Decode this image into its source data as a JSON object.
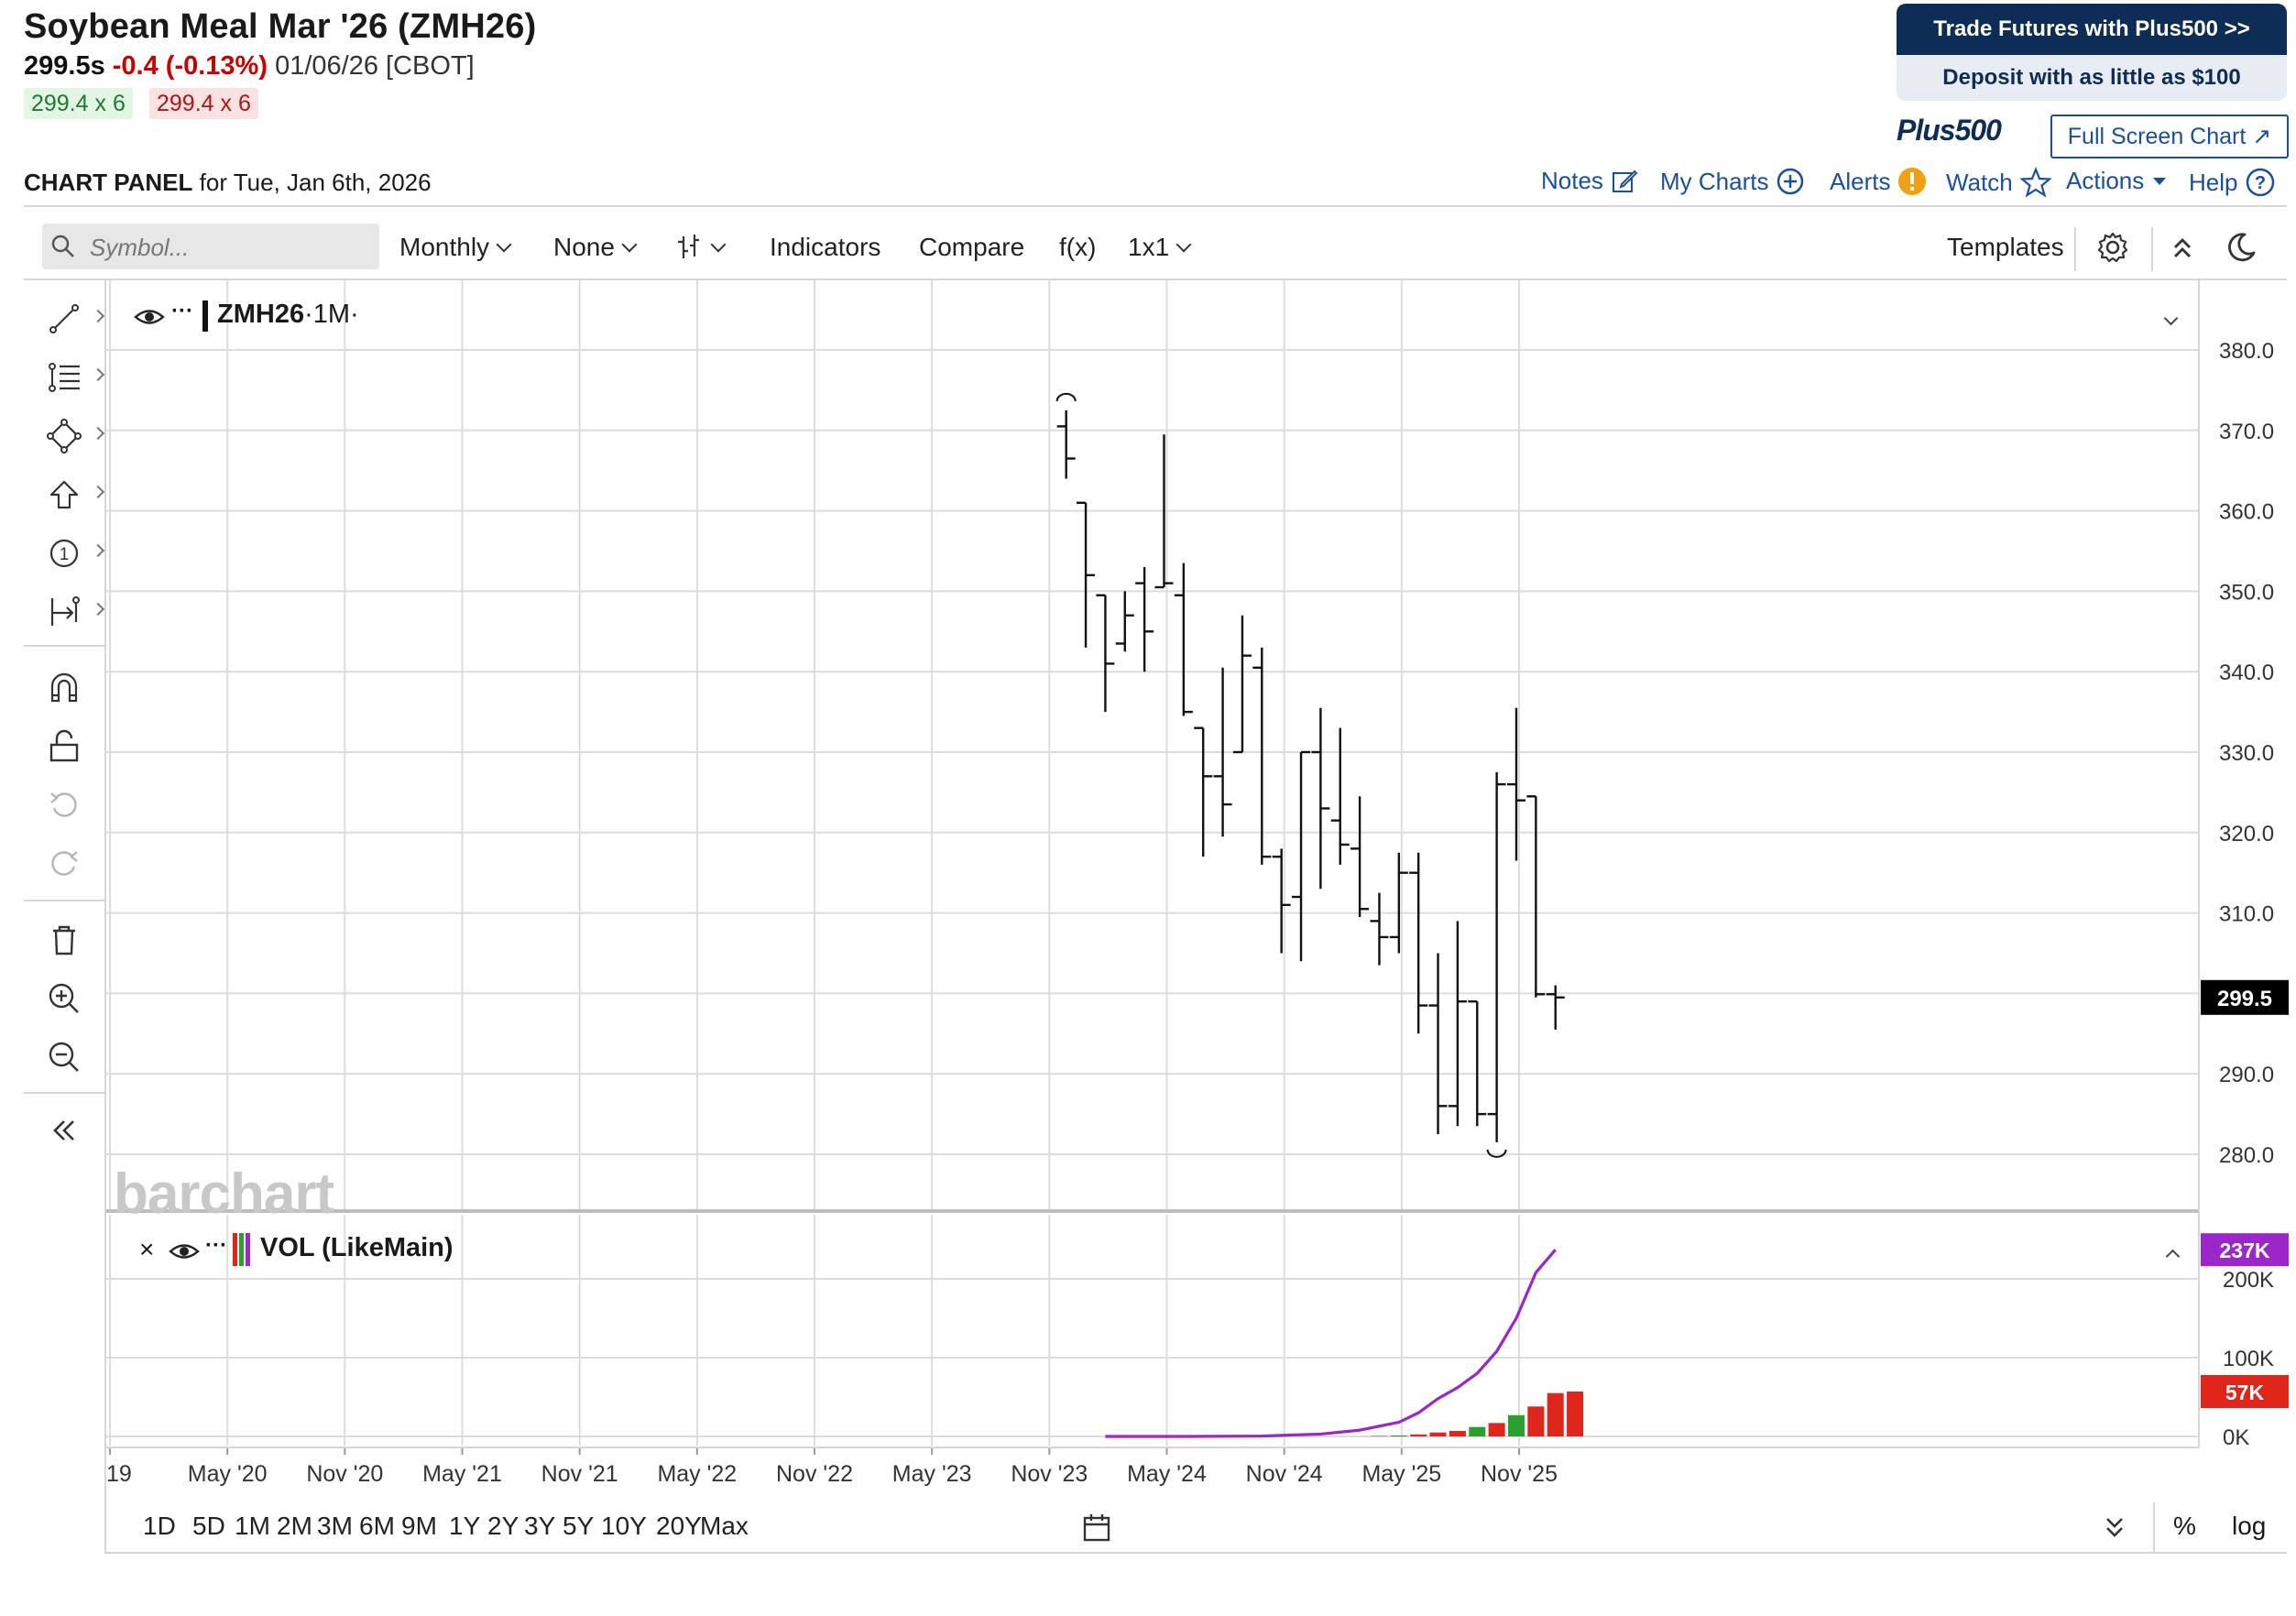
{
  "header": {
    "title": "Soybean Meal Mar '26 (ZMH26)",
    "price": "299.5s",
    "change": "-0.4 (-0.13%)",
    "meta": "01/06/26 [CBOT]",
    "bid": "299.4 x 6",
    "ask": "299.4 x 6"
  },
  "ad": {
    "line1": "Trade Futures with Plus500 >>",
    "line2": "Deposit with as little as $100",
    "brand": "Plus500",
    "fullscreen": "Full Screen Chart ↗"
  },
  "panel": {
    "label": "CHART PANEL",
    "date": "for Tue, Jan 6th, 2026",
    "links": {
      "notes": "Notes",
      "mycharts": "My Charts",
      "alerts": "Alerts",
      "watch": "Watch",
      "actions": "Actions",
      "help": "Help"
    }
  },
  "toolbar": {
    "search_placeholder": "Symbol...",
    "period": "Monthly",
    "overlay": "None",
    "indicators": "Indicators",
    "compare": "Compare",
    "fx": "f(x)",
    "layout": "1x1",
    "templates": "Templates"
  },
  "legend": {
    "main": "ZMH26",
    "main_interval": "·1M·",
    "vol": "VOL (LikeMain)"
  },
  "watermark": "barchart",
  "bottom": {
    "ranges": [
      "1D",
      "5D",
      "1M",
      "2M",
      "3M",
      "6M",
      "9M",
      "1Y",
      "2Y",
      "3Y",
      "5Y",
      "10Y",
      "20Y",
      "Max"
    ],
    "pct": "%",
    "log": "log"
  },
  "colors": {
    "up": "#2ca02c",
    "down": "#e0261b",
    "vol_line": "#9b27c9",
    "price_tag": "#000000",
    "accent": "#1a4f9c"
  },
  "chart_data": [
    {
      "type": "ohlc",
      "title": "ZMH26",
      "interval": "1M",
      "x_tick_labels": [
        "19",
        "May '20",
        "Nov '20",
        "May '21",
        "Nov '21",
        "May '22",
        "Nov '22",
        "May '23",
        "Nov '23",
        "May '24",
        "Nov '24",
        "May '25",
        "Nov '25"
      ],
      "y_ticks": [
        280.0,
        290.0,
        300.0,
        310.0,
        320.0,
        330.0,
        340.0,
        350.0,
        360.0,
        370.0,
        380.0
      ],
      "ylim": [
        274,
        388
      ],
      "last_price": 299.5,
      "last_price_label": "299.5",
      "grid": true,
      "bars": [
        {
          "date": "2023-12",
          "open": 370.5,
          "high": 372.5,
          "low": 364.0,
          "close": 366.5
        },
        {
          "date": "2024-01",
          "open": 361.0,
          "high": 361.0,
          "low": 343.0,
          "close": 352.0
        },
        {
          "date": "2024-02",
          "open": 349.5,
          "high": 349.5,
          "low": 335.0,
          "close": 341.0
        },
        {
          "date": "2024-03",
          "open": 343.5,
          "high": 350.0,
          "low": 342.5,
          "close": 347.0
        },
        {
          "date": "2024-04",
          "open": 351.0,
          "high": 353.0,
          "low": 340.0,
          "close": 345.0
        },
        {
          "date": "2024-05",
          "open": 350.5,
          "high": 369.5,
          "low": 350.5,
          "close": 351.0
        },
        {
          "date": "2024-06",
          "open": 349.5,
          "high": 353.5,
          "low": 334.5,
          "close": 335.0
        },
        {
          "date": "2024-07",
          "open": 333.0,
          "high": 333.0,
          "low": 317.0,
          "close": 327.0
        },
        {
          "date": "2024-08",
          "open": 327.0,
          "high": 340.5,
          "low": 319.5,
          "close": 323.5
        },
        {
          "date": "2024-09",
          "open": 330.0,
          "high": 347.0,
          "low": 330.0,
          "close": 342.0
        },
        {
          "date": "2024-10",
          "open": 340.5,
          "high": 343.0,
          "low": 316.0,
          "close": 317.0
        },
        {
          "date": "2024-11",
          "open": 317.0,
          "high": 318.0,
          "low": 305.0,
          "close": 311.0
        },
        {
          "date": "2024-12",
          "open": 312.0,
          "high": 330.0,
          "low": 304.0,
          "close": 330.0
        },
        {
          "date": "2025-01",
          "open": 330.0,
          "high": 335.5,
          "low": 313.0,
          "close": 323.0
        },
        {
          "date": "2025-02",
          "open": 321.5,
          "high": 333.0,
          "low": 316.0,
          "close": 318.5
        },
        {
          "date": "2025-03",
          "open": 318.0,
          "high": 324.5,
          "low": 309.5,
          "close": 310.5
        },
        {
          "date": "2025-04",
          "open": 309.0,
          "high": 312.5,
          "low": 303.5,
          "close": 307.0
        },
        {
          "date": "2025-05",
          "open": 307.0,
          "high": 317.5,
          "low": 305.0,
          "close": 315.0
        },
        {
          "date": "2025-06",
          "open": 315.0,
          "high": 317.5,
          "low": 295.0,
          "close": 298.5
        },
        {
          "date": "2025-07",
          "open": 298.5,
          "high": 305.0,
          "low": 282.5,
          "close": 286.0
        },
        {
          "date": "2025-08",
          "open": 286.0,
          "high": 309.0,
          "low": 283.5,
          "close": 299.0
        },
        {
          "date": "2025-09",
          "open": 299.0,
          "high": 299.0,
          "low": 283.5,
          "close": 285.0
        },
        {
          "date": "2025-10",
          "open": 285.0,
          "high": 327.5,
          "low": 281.5,
          "close": 326.0
        },
        {
          "date": "2025-11",
          "open": 326.0,
          "high": 335.5,
          "low": 316.5,
          "close": 324.0
        },
        {
          "date": "2025-12",
          "open": 324.5,
          "high": 324.5,
          "low": 299.5,
          "close": 299.9
        },
        {
          "date": "2026-01",
          "open": 299.9,
          "high": 301.0,
          "low": 295.5,
          "close": 299.5
        }
      ],
      "annotations": [
        "high-marker above Nov '23 bar",
        "low-marker below Oct '25 bar"
      ]
    },
    {
      "type": "bar",
      "title": "VOL (LikeMain)",
      "y_tick_labels": [
        "0K",
        "100K",
        "200K"
      ],
      "ylim": [
        0,
        260000
      ],
      "last_volume_label": "57K",
      "line_label": "237K",
      "bars": [
        {
          "date": "2025-04",
          "value": 500,
          "color": "down"
        },
        {
          "date": "2025-05",
          "value": 1200,
          "color": "up"
        },
        {
          "date": "2025-06",
          "value": 2500,
          "color": "down"
        },
        {
          "date": "2025-07",
          "value": 5000,
          "color": "down"
        },
        {
          "date": "2025-08",
          "value": 7000,
          "color": "down"
        },
        {
          "date": "2025-09",
          "value": 12000,
          "color": "up"
        },
        {
          "date": "2025-10",
          "value": 17000,
          "color": "down"
        },
        {
          "date": "2025-11",
          "value": 27000,
          "color": "up"
        },
        {
          "date": "2025-12",
          "value": 38000,
          "color": "down"
        },
        {
          "date": "2026-01",
          "value": 55000,
          "color": "down"
        },
        {
          "date": "2026-02",
          "value": 57000,
          "color": "down"
        }
      ],
      "cumulative_line": [
        {
          "date": "2024-02",
          "value": 0
        },
        {
          "date": "2024-06",
          "value": 0
        },
        {
          "date": "2024-10",
          "value": 500
        },
        {
          "date": "2025-01",
          "value": 3000
        },
        {
          "date": "2025-03",
          "value": 8000
        },
        {
          "date": "2025-05",
          "value": 18000
        },
        {
          "date": "2025-06",
          "value": 30000
        },
        {
          "date": "2025-07",
          "value": 48000
        },
        {
          "date": "2025-08",
          "value": 62000
        },
        {
          "date": "2025-09",
          "value": 80000
        },
        {
          "date": "2025-10",
          "value": 108000
        },
        {
          "date": "2025-11",
          "value": 150000
        },
        {
          "date": "2025-12",
          "value": 208000
        },
        {
          "date": "2026-01",
          "value": 237000
        }
      ]
    }
  ]
}
